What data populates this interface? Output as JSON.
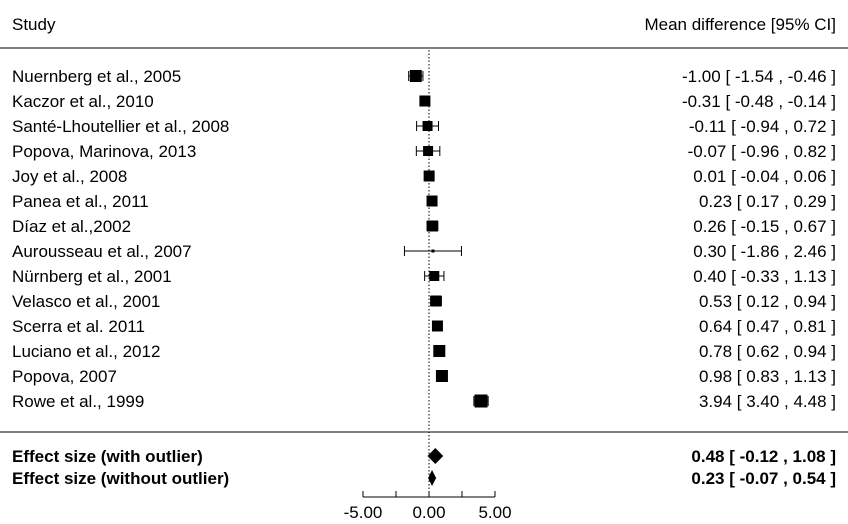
{
  "header": {
    "study_label": "Study",
    "effect_label": "Mean difference [95% CI]"
  },
  "chart_data": {
    "type": "forest",
    "xlim": [
      -5,
      5
    ],
    "reference_line": 0,
    "ticks": [
      "-5.00",
      "0.00",
      "5.00"
    ],
    "studies": [
      {
        "name": "Nuernberg et al., 2005",
        "estimate": -1.0,
        "lower": -1.54,
        "upper": -0.46,
        "ci_text": "-1.00 [ -1.54 , -0.46 ]"
      },
      {
        "name": "Kaczor et al., 2010",
        "estimate": -0.31,
        "lower": -0.48,
        "upper": -0.14,
        "ci_text": "-0.31 [ -0.48 , -0.14 ]"
      },
      {
        "name": "Santé-Lhoutellier et al., 2008",
        "estimate": -0.11,
        "lower": -0.94,
        "upper": 0.72,
        "ci_text": "-0.11 [ -0.94 , 0.72 ]"
      },
      {
        "name": "Popova, Marinova, 2013",
        "estimate": -0.07,
        "lower": -0.96,
        "upper": 0.82,
        "ci_text": "-0.07 [ -0.96 , 0.82 ]"
      },
      {
        "name": "Joy et al., 2008",
        "estimate": 0.01,
        "lower": -0.04,
        "upper": 0.06,
        "ci_text": "0.01 [ -0.04 , 0.06 ]"
      },
      {
        "name": "Panea et al., 2011",
        "estimate": 0.23,
        "lower": 0.17,
        "upper": 0.29,
        "ci_text": "0.23 [ 0.17 , 0.29 ]"
      },
      {
        "name": "Díaz et al.,2002",
        "estimate": 0.26,
        "lower": -0.15,
        "upper": 0.67,
        "ci_text": "0.26 [ -0.15 , 0.67 ]"
      },
      {
        "name": "Aurousseau et al., 2007",
        "estimate": 0.3,
        "lower": -1.86,
        "upper": 2.46,
        "ci_text": "0.30 [ -1.86 , 2.46 ]"
      },
      {
        "name": "Nürnberg et al., 2001",
        "estimate": 0.4,
        "lower": -0.33,
        "upper": 1.13,
        "ci_text": "0.40 [ -0.33 , 1.13 ]"
      },
      {
        "name": "Velasco et al., 2001",
        "estimate": 0.53,
        "lower": 0.12,
        "upper": 0.94,
        "ci_text": "0.53 [ 0.12 , 0.94 ]"
      },
      {
        "name": "Scerra et al. 2011",
        "estimate": 0.64,
        "lower": 0.47,
        "upper": 0.81,
        "ci_text": "0.64 [ 0.47 , 0.81 ]"
      },
      {
        "name": "Luciano et al., 2012",
        "estimate": 0.78,
        "lower": 0.62,
        "upper": 0.94,
        "ci_text": "0.78 [ 0.62 , 0.94 ]"
      },
      {
        "name": "Popova, 2007",
        "estimate": 0.98,
        "lower": 0.83,
        "upper": 1.13,
        "ci_text": "0.98 [ 0.83 , 1.13 ]"
      },
      {
        "name": "Rowe et al., 1999",
        "estimate": 3.94,
        "lower": 3.4,
        "upper": 4.48,
        "ci_text": "3.94 [ 3.40 , 4.48 ]"
      }
    ],
    "summaries": [
      {
        "name": "Effect size (with outlier)",
        "estimate": 0.48,
        "lower": -0.12,
        "upper": 1.08,
        "ci_text": "0.48 [ -0.12 , 1.08 ]"
      },
      {
        "name": "Effect size (without outlier)",
        "estimate": 0.23,
        "lower": -0.07,
        "upper": 0.54,
        "ci_text": "0.23 [ -0.07 , 0.54 ]"
      }
    ]
  }
}
